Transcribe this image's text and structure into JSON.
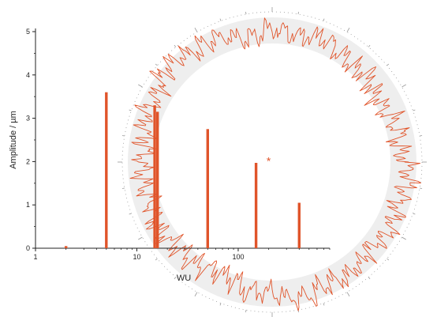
{
  "chart_data": {
    "type": "bar",
    "xlabel": "WU",
    "ylabel": "Amplitude / µm",
    "x_scale": "log",
    "xlim": [
      1,
      800
    ],
    "ylim": [
      0,
      5
    ],
    "x_ticks": [
      {
        "value": 1,
        "label": "1"
      },
      {
        "value": 10,
        "label": "10"
      },
      {
        "value": 100,
        "label": "100"
      }
    ],
    "y_ticks": [
      {
        "value": 0,
        "label": "0"
      },
      {
        "value": 1,
        "label": "1"
      },
      {
        "value": 2,
        "label": "2"
      },
      {
        "value": 3,
        "label": "3"
      },
      {
        "value": 4,
        "label": "4"
      },
      {
        "value": 5,
        "label": "5"
      }
    ],
    "bars": [
      {
        "x": 2,
        "value": 0.05
      },
      {
        "x": 5,
        "value": 3.6
      },
      {
        "x": 15,
        "value": 3.3
      },
      {
        "x": 16,
        "value": 3.15
      },
      {
        "x": 50,
        "value": 2.75
      },
      {
        "x": 150,
        "value": 1.97
      },
      {
        "x": 400,
        "value": 1.05
      }
    ],
    "annotations": [
      {
        "text": "*",
        "x": 200,
        "y": 2.0
      }
    ],
    "bar_color": "#e0542a",
    "inset": {
      "type": "polar roundness profile",
      "profile_color": "#e0542a",
      "band_color": "#eeeeee",
      "scale_color": "#999999"
    }
  }
}
